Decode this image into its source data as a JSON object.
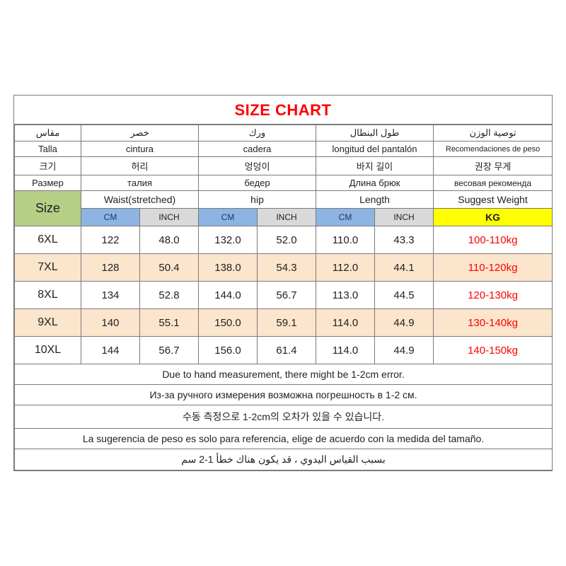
{
  "title": "SIZE CHART",
  "langHeaders": {
    "arabic": [
      "مقاس",
      "خصر",
      "ورك",
      "طول البنطال",
      "توصية الوزن"
    ],
    "spanish": [
      "Talla",
      "cintura",
      "cadera",
      "longitud del pantalón",
      "Recomendaciones de peso"
    ],
    "korean": [
      "크기",
      "허리",
      "엉덩이",
      "바지 길이",
      "권장 무게"
    ],
    "russian": [
      "Размер",
      "талия",
      "бедер",
      "Длина брюк",
      "весовая рекоменда"
    ]
  },
  "mainHeaders": {
    "size": "Size",
    "waist": "Waist(stretched)",
    "hip": "hip",
    "length": "Length",
    "weight": "Suggest Weight"
  },
  "unitHeaders": {
    "cm": "CM",
    "inch": "INCH",
    "kg": "KG"
  },
  "rows": [
    {
      "size": "6XL",
      "waist_cm": "122",
      "waist_in": "48.0",
      "hip_cm": "132.0",
      "hip_in": "52.0",
      "len_cm": "110.0",
      "len_in": "43.3",
      "weight": "100-110kg",
      "alt": false
    },
    {
      "size": "7XL",
      "waist_cm": "128",
      "waist_in": "50.4",
      "hip_cm": "138.0",
      "hip_in": "54.3",
      "len_cm": "112.0",
      "len_in": "44.1",
      "weight": "110-120kg",
      "alt": true
    },
    {
      "size": "8XL",
      "waist_cm": "134",
      "waist_in": "52.8",
      "hip_cm": "144.0",
      "hip_in": "56.7",
      "len_cm": "113.0",
      "len_in": "44.5",
      "weight": "120-130kg",
      "alt": false
    },
    {
      "size": "9XL",
      "waist_cm": "140",
      "waist_in": "55.1",
      "hip_cm": "150.0",
      "hip_in": "59.1",
      "len_cm": "114.0",
      "len_in": "44.9",
      "weight": "130-140kg",
      "alt": true
    },
    {
      "size": "10XL",
      "waist_cm": "144",
      "waist_in": "56.7",
      "hip_cm": "156.0",
      "hip_in": "61.4",
      "len_cm": "114.0",
      "len_in": "44.9",
      "weight": "140-150kg",
      "alt": false
    }
  ],
  "notes": [
    "Due to hand measurement, there might be 1-2cm error.",
    "Из-за ручного измерения возможна погрешность в 1-2 см.",
    "수동 측정으로 1-2cm의 오차가 있을 수 있습니다.",
    "La sugerencia de peso es solo para referencia, elige de acuerdo con la medida del tamaño.",
    "بسبب القياس اليدوي ، قد يكون هناك خطأ 1-2 سم"
  ],
  "colors": {
    "title": "#ff0000",
    "sizeHeaderBg": "#b5cf87",
    "cmBg": "#8db4e2",
    "inchBg": "#d9d9d9",
    "kgBg": "#ffff00",
    "altRowBg": "#fce5cd",
    "border": "#7a7a7a",
    "weightText": "#ff0000"
  },
  "columnWidths": {
    "size": 94,
    "sub": 83,
    "weight": 168
  }
}
